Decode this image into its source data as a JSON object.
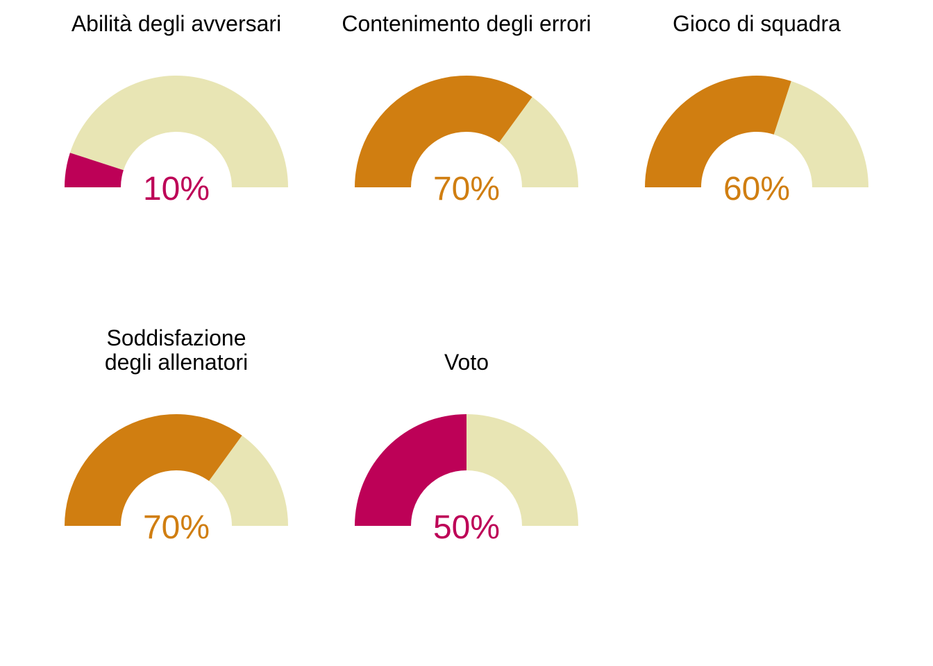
{
  "chart_data": {
    "type": "gauge",
    "track_color": "#E8E5B4",
    "gauges": [
      {
        "title_lines": [
          "Abilità degli avversari"
        ],
        "value": 10,
        "label": "10%",
        "color": "#BD0157"
      },
      {
        "title_lines": [
          "Contenimento degli errori"
        ],
        "value": 70,
        "label": "70%",
        "color": "#D07E11"
      },
      {
        "title_lines": [
          "Gioco di squadra"
        ],
        "value": 60,
        "label": "60%",
        "color": "#D07E11"
      },
      {
        "title_lines": [
          "Soddisfazione",
          "degli allenatori"
        ],
        "value": 70,
        "label": "70%",
        "color": "#D07E11"
      },
      {
        "title_lines": [
          "Voto"
        ],
        "value": 50,
        "label": "50%",
        "color": "#BD0157"
      }
    ]
  }
}
